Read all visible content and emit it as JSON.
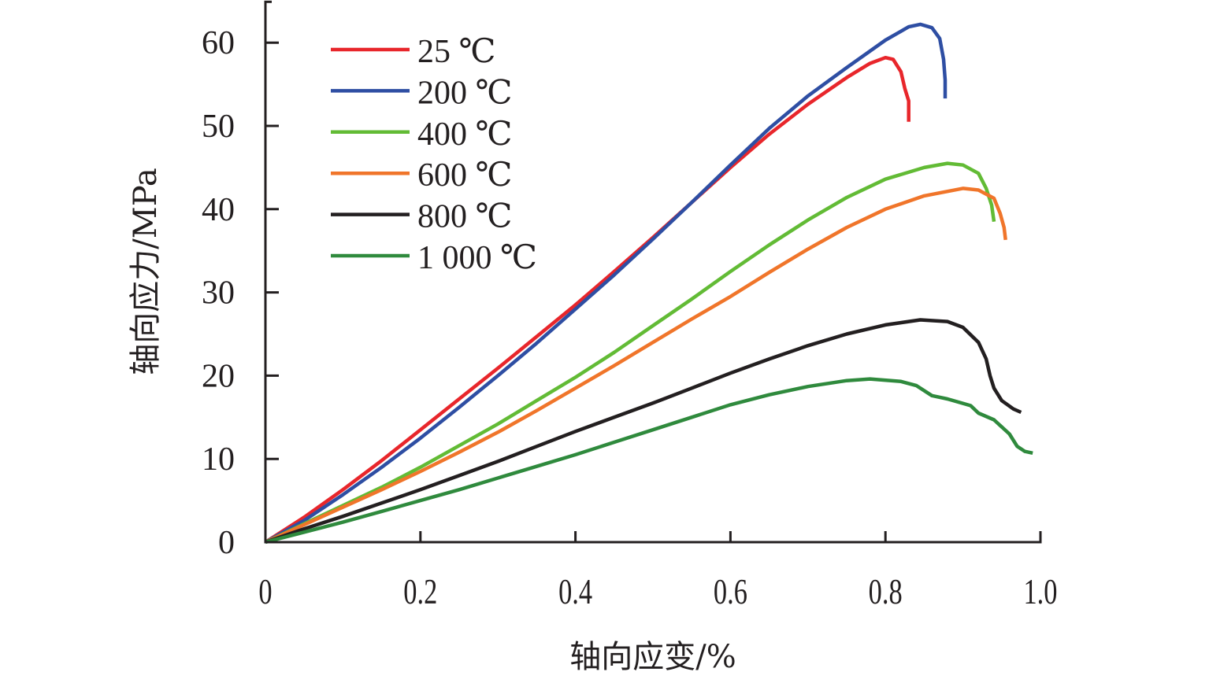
{
  "chart_data": {
    "type": "line",
    "title": "",
    "xlabel": "轴向应变/%",
    "ylabel": "轴向应力/MPa",
    "xlim": [
      0,
      1.0
    ],
    "ylim": [
      0,
      65
    ],
    "xticks": [
      0,
      0.2,
      0.4,
      0.6,
      0.8,
      1.0
    ],
    "xtick_labels": [
      "0",
      "0.2",
      "0.4",
      "0.6",
      "0.8",
      "1.0"
    ],
    "yticks": [
      0,
      10,
      20,
      30,
      40,
      50,
      60
    ],
    "ytick_labels": [
      "0",
      "10",
      "20",
      "30",
      "40",
      "50",
      "60"
    ],
    "grid": false,
    "legend_position": "top-left",
    "series": [
      {
        "name": "25 ℃",
        "color": "#e8262b",
        "points": [
          [
            0,
            0
          ],
          [
            0.05,
            3.0
          ],
          [
            0.1,
            6.3
          ],
          [
            0.15,
            9.8
          ],
          [
            0.2,
            13.5
          ],
          [
            0.25,
            17.2
          ],
          [
            0.3,
            20.9
          ],
          [
            0.35,
            24.7
          ],
          [
            0.4,
            28.5
          ],
          [
            0.45,
            32.5
          ],
          [
            0.5,
            36.6
          ],
          [
            0.55,
            40.8
          ],
          [
            0.6,
            45.0
          ],
          [
            0.65,
            49.0
          ],
          [
            0.7,
            52.6
          ],
          [
            0.75,
            55.8
          ],
          [
            0.78,
            57.5
          ],
          [
            0.8,
            58.2
          ],
          [
            0.81,
            58.0
          ],
          [
            0.82,
            56.5
          ],
          [
            0.825,
            54.5
          ],
          [
            0.83,
            53.0
          ],
          [
            0.83,
            50.5
          ]
        ]
      },
      {
        "name": "200 ℃",
        "color": "#2e4ea3",
        "points": [
          [
            0,
            0
          ],
          [
            0.05,
            2.6
          ],
          [
            0.1,
            5.7
          ],
          [
            0.15,
            9.0
          ],
          [
            0.2,
            12.5
          ],
          [
            0.25,
            16.2
          ],
          [
            0.3,
            20.0
          ],
          [
            0.35,
            23.9
          ],
          [
            0.4,
            28.0
          ],
          [
            0.45,
            32.1
          ],
          [
            0.5,
            36.4
          ],
          [
            0.55,
            40.8
          ],
          [
            0.6,
            45.3
          ],
          [
            0.65,
            49.7
          ],
          [
            0.7,
            53.6
          ],
          [
            0.75,
            57.0
          ],
          [
            0.8,
            60.3
          ],
          [
            0.83,
            61.9
          ],
          [
            0.845,
            62.2
          ],
          [
            0.86,
            61.8
          ],
          [
            0.87,
            60.5
          ],
          [
            0.875,
            58.0
          ],
          [
            0.877,
            55.5
          ],
          [
            0.877,
            53.3
          ]
        ]
      },
      {
        "name": "400 ℃",
        "color": "#62bb35",
        "points": [
          [
            0,
            0
          ],
          [
            0.05,
            2.2
          ],
          [
            0.1,
            4.4
          ],
          [
            0.15,
            6.6
          ],
          [
            0.2,
            9.0
          ],
          [
            0.25,
            11.6
          ],
          [
            0.3,
            14.2
          ],
          [
            0.35,
            17.0
          ],
          [
            0.4,
            19.8
          ],
          [
            0.45,
            22.8
          ],
          [
            0.5,
            26.0
          ],
          [
            0.55,
            29.2
          ],
          [
            0.6,
            32.5
          ],
          [
            0.65,
            35.7
          ],
          [
            0.7,
            38.7
          ],
          [
            0.75,
            41.4
          ],
          [
            0.8,
            43.6
          ],
          [
            0.85,
            45.0
          ],
          [
            0.88,
            45.5
          ],
          [
            0.9,
            45.3
          ],
          [
            0.92,
            44.3
          ],
          [
            0.93,
            42.5
          ],
          [
            0.937,
            40.5
          ],
          [
            0.94,
            38.5
          ]
        ]
      },
      {
        "name": "600 ℃",
        "color": "#f0752a",
        "points": [
          [
            0,
            0
          ],
          [
            0.05,
            2.1
          ],
          [
            0.1,
            4.2
          ],
          [
            0.15,
            6.3
          ],
          [
            0.2,
            8.5
          ],
          [
            0.25,
            10.8
          ],
          [
            0.3,
            13.2
          ],
          [
            0.35,
            15.8
          ],
          [
            0.4,
            18.5
          ],
          [
            0.45,
            21.2
          ],
          [
            0.5,
            24.0
          ],
          [
            0.55,
            26.8
          ],
          [
            0.6,
            29.5
          ],
          [
            0.65,
            32.4
          ],
          [
            0.7,
            35.2
          ],
          [
            0.75,
            37.8
          ],
          [
            0.8,
            40.0
          ],
          [
            0.85,
            41.6
          ],
          [
            0.9,
            42.5
          ],
          [
            0.92,
            42.3
          ],
          [
            0.94,
            41.3
          ],
          [
            0.948,
            39.5
          ],
          [
            0.953,
            37.8
          ],
          [
            0.955,
            36.3
          ]
        ]
      },
      {
        "name": "800 ℃",
        "color": "#231f20",
        "points": [
          [
            0,
            0
          ],
          [
            0.05,
            1.6
          ],
          [
            0.1,
            3.1
          ],
          [
            0.15,
            4.7
          ],
          [
            0.2,
            6.3
          ],
          [
            0.25,
            8.0
          ],
          [
            0.3,
            9.7
          ],
          [
            0.35,
            11.5
          ],
          [
            0.4,
            13.3
          ],
          [
            0.45,
            15.0
          ],
          [
            0.5,
            16.7
          ],
          [
            0.55,
            18.5
          ],
          [
            0.6,
            20.3
          ],
          [
            0.65,
            22.0
          ],
          [
            0.7,
            23.6
          ],
          [
            0.75,
            25.0
          ],
          [
            0.8,
            26.1
          ],
          [
            0.845,
            26.7
          ],
          [
            0.88,
            26.5
          ],
          [
            0.9,
            25.8
          ],
          [
            0.92,
            24.0
          ],
          [
            0.93,
            22.0
          ],
          [
            0.935,
            20.0
          ],
          [
            0.94,
            18.5
          ],
          [
            0.95,
            17.0
          ],
          [
            0.965,
            16.0
          ],
          [
            0.975,
            15.6
          ]
        ]
      },
      {
        "name": "1 000 ℃",
        "color": "#2f8a3d",
        "points": [
          [
            0,
            0
          ],
          [
            0.05,
            1.2
          ],
          [
            0.1,
            2.4
          ],
          [
            0.15,
            3.7
          ],
          [
            0.2,
            5.0
          ],
          [
            0.25,
            6.3
          ],
          [
            0.3,
            7.7
          ],
          [
            0.35,
            9.1
          ],
          [
            0.4,
            10.5
          ],
          [
            0.45,
            12.0
          ],
          [
            0.5,
            13.5
          ],
          [
            0.55,
            15.0
          ],
          [
            0.6,
            16.5
          ],
          [
            0.65,
            17.7
          ],
          [
            0.7,
            18.7
          ],
          [
            0.75,
            19.4
          ],
          [
            0.78,
            19.6
          ],
          [
            0.82,
            19.3
          ],
          [
            0.84,
            18.8
          ],
          [
            0.86,
            17.6
          ],
          [
            0.88,
            17.2
          ],
          [
            0.91,
            16.4
          ],
          [
            0.92,
            15.5
          ],
          [
            0.94,
            14.7
          ],
          [
            0.96,
            13.0
          ],
          [
            0.97,
            11.5
          ],
          [
            0.98,
            10.9
          ],
          [
            0.99,
            10.7
          ]
        ]
      }
    ]
  }
}
